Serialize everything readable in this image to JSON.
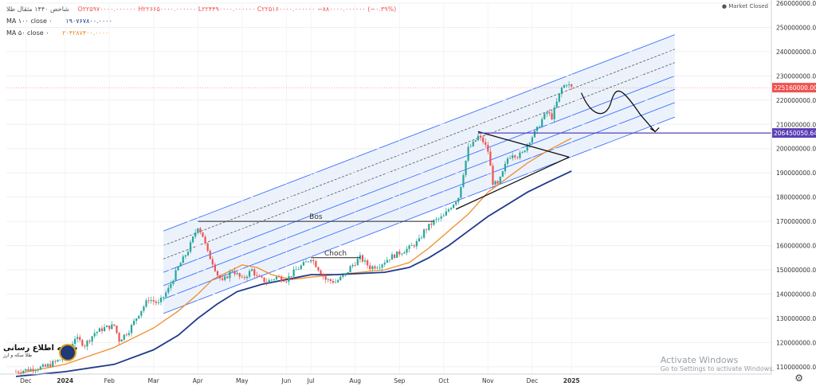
{
  "legend": {
    "symbol_line": "شاخص ۱۴۴۰ مثقال طلا",
    "ohlc": "O۲۲۵۹۷۰۰۰۰.۰۰۰۰۰۰ H۲۲۶۶۵۰۰۰۰.۰۰۰۰۰۰ L۲۲۴۴۹۰۰۰۰.۰۰۰۰۰۰ C۲۲۵۱۶۰۰۰۰.۰۰۰۰۰۰ −۸۸۰۰۰۰.۰۰۰۰۰۰ (−۰.۳۹%)",
    "ma100_label": "MA ۱۰۰ close ۰",
    "ma100_value": "۱۹۰۷۶۷۸۰۰.۰۰۰۰",
    "ma50_label": "MA ۵۰ close ۰",
    "ma50_value": "۲۰۴۲۸۷۴۰۰.۰۰۰۰"
  },
  "status": {
    "market": "Market Closed"
  },
  "watermark": {
    "line1": "Activate Windows",
    "line2": "Go to Settings to activate Windows."
  },
  "logo": {
    "name": "شبکه اطلاع رسانی",
    "sub": "طلا سکه و ارز"
  },
  "colors": {
    "up": "#26a69a",
    "down": "#ef5350",
    "ma50": "#f28c28",
    "ma100": "#1f3a8a",
    "channel": "#2962ff",
    "channel_fill": "#e8f0fb",
    "level": "#5b3fb5"
  },
  "chart_data": {
    "type": "candlestick",
    "title": "شاخص ۱۴۴۰ مثقال طلا",
    "x_ticks": [
      "Dec",
      "2024",
      "Feb",
      "Mar",
      "Apr",
      "May",
      "Jun",
      "Jul",
      "Aug",
      "Sep",
      "Oct",
      "Nov",
      "Dec",
      "2025"
    ],
    "ylim": [
      107000000,
      260000000
    ],
    "y_ticks": [
      110000000,
      120000000,
      130000000,
      140000000,
      150000000,
      160000000,
      170000000,
      180000000,
      190000000,
      200000000,
      210000000,
      220000000,
      230000000,
      240000000,
      250000000,
      260000000
    ],
    "y_tick_labels": [
      "110000000.000000",
      "120000000.000000",
      "130000000.000000",
      "140000000.000000",
      "150000000.000000",
      "160000000.000000",
      "170000000.000000",
      "180000000.000000",
      "190000000.000000",
      "200000000.000000",
      "210000000.000000",
      "220000000.000000",
      "230000000.000000",
      "240000000.000000",
      "250000000.000000",
      "260000000.000000"
    ],
    "price_anchors": [
      [
        0,
        108
      ],
      [
        3,
        109
      ],
      [
        6,
        110
      ],
      [
        9,
        113
      ],
      [
        11,
        118
      ],
      [
        12,
        122
      ],
      [
        14,
        119
      ],
      [
        16,
        124
      ],
      [
        18,
        126
      ],
      [
        20,
        127
      ],
      [
        21,
        121
      ],
      [
        23,
        125
      ],
      [
        25,
        132
      ],
      [
        27,
        138
      ],
      [
        29,
        136
      ],
      [
        31,
        142
      ],
      [
        33,
        151
      ],
      [
        35,
        158
      ],
      [
        36,
        163
      ],
      [
        37,
        168
      ],
      [
        38,
        164
      ],
      [
        39,
        157
      ],
      [
        40,
        153
      ],
      [
        41,
        148
      ],
      [
        42,
        145
      ],
      [
        44,
        150
      ],
      [
        46,
        146
      ],
      [
        48,
        150
      ],
      [
        49,
        147
      ],
      [
        51,
        145
      ],
      [
        53,
        147
      ],
      [
        55,
        146
      ],
      [
        57,
        150
      ],
      [
        59,
        153
      ],
      [
        60,
        155
      ],
      [
        61,
        152
      ],
      [
        62,
        149
      ],
      [
        63,
        146
      ],
      [
        65,
        145
      ],
      [
        67,
        148
      ],
      [
        68,
        151
      ],
      [
        69,
        153
      ],
      [
        70,
        155
      ],
      [
        71,
        153
      ],
      [
        72,
        151
      ],
      [
        74,
        152
      ],
      [
        76,
        155
      ],
      [
        78,
        157
      ],
      [
        80,
        159
      ],
      [
        82,
        162
      ],
      [
        83,
        166
      ],
      [
        85,
        170
      ],
      [
        87,
        172
      ],
      [
        88,
        175
      ],
      [
        90,
        180
      ],
      [
        91,
        190
      ],
      [
        92,
        200
      ],
      [
        93,
        202
      ],
      [
        94,
        205
      ],
      [
        95,
        203
      ],
      [
        96,
        199
      ],
      [
        97,
        186
      ],
      [
        98,
        185
      ],
      [
        99,
        190
      ],
      [
        100,
        196
      ],
      [
        101,
        198
      ],
      [
        102,
        197
      ],
      [
        103,
        198
      ],
      [
        104,
        202
      ],
      [
        105,
        205
      ],
      [
        106,
        208
      ],
      [
        107,
        212
      ],
      [
        108,
        215
      ],
      [
        109,
        213
      ],
      [
        110,
        219
      ],
      [
        111,
        225
      ],
      [
        112,
        227
      ],
      [
        113,
        225.16
      ]
    ],
    "series": [
      {
        "name": "MA ۵۰ close ۰",
        "values": [
          [
            0,
            107
          ],
          [
            10,
            111
          ],
          [
            20,
            118
          ],
          [
            28,
            126
          ],
          [
            33,
            133
          ],
          [
            37,
            140
          ],
          [
            40,
            146
          ],
          [
            43,
            149
          ],
          [
            46,
            152
          ],
          [
            49,
            151
          ],
          [
            52,
            148
          ],
          [
            56,
            146
          ],
          [
            60,
            147
          ],
          [
            65,
            148
          ],
          [
            70,
            149
          ],
          [
            75,
            150
          ],
          [
            80,
            153
          ],
          [
            84,
            159
          ],
          [
            88,
            166
          ],
          [
            92,
            173
          ],
          [
            96,
            182
          ],
          [
            100,
            188
          ],
          [
            104,
            194
          ],
          [
            108,
            199
          ],
          [
            113,
            204.29
          ]
        ]
      },
      {
        "name": "MA ۱۰۰ close ۰",
        "values": [
          [
            0,
            106
          ],
          [
            10,
            108
          ],
          [
            20,
            111
          ],
          [
            28,
            117
          ],
          [
            33,
            123
          ],
          [
            37,
            130
          ],
          [
            41,
            136
          ],
          [
            45,
            141
          ],
          [
            50,
            144
          ],
          [
            55,
            146
          ],
          [
            60,
            148
          ],
          [
            65,
            148
          ],
          [
            70,
            148.5
          ],
          [
            75,
            149
          ],
          [
            80,
            151
          ],
          [
            84,
            155
          ],
          [
            88,
            160
          ],
          [
            92,
            166
          ],
          [
            96,
            172
          ],
          [
            100,
            177
          ],
          [
            104,
            182
          ],
          [
            108,
            186
          ],
          [
            113,
            190.77
          ]
        ]
      }
    ],
    "price_label": "225160000.000000",
    "level_label": "206450050.646153",
    "annotations": [
      {
        "text": "Bos",
        "y": 170,
        "x0": 37,
        "x1": 85
      },
      {
        "text": "Choch",
        "y": 155,
        "x0": 60,
        "x1": 70
      }
    ]
  }
}
